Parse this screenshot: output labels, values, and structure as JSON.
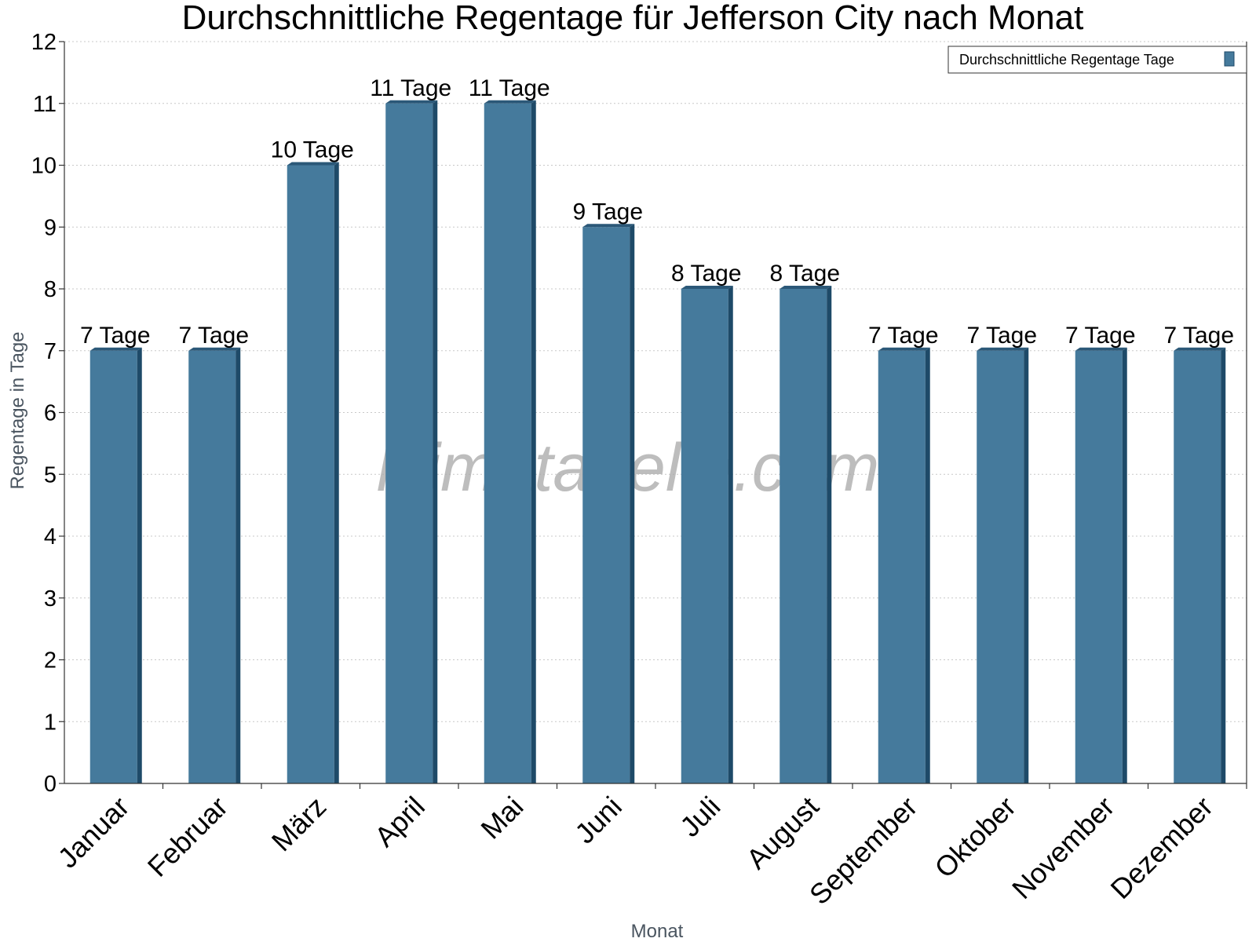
{
  "chart_data": {
    "type": "bar",
    "title": "Durchschnittliche Regentage für Jefferson City nach Monat",
    "xlabel": "Monat",
    "ylabel": "Regentage in Tage",
    "ylim": [
      0,
      12
    ],
    "yticks": [
      0,
      1,
      2,
      3,
      4,
      5,
      6,
      7,
      8,
      9,
      10,
      11,
      12
    ],
    "grid": true,
    "legend_position": "top-right",
    "categories": [
      "Januar",
      "Februar",
      "März",
      "April",
      "Mai",
      "Juni",
      "Juli",
      "August",
      "September",
      "Oktober",
      "November",
      "Dezember"
    ],
    "series": [
      {
        "name": "Durchschnittliche Regentage Tage",
        "values": [
          7,
          7,
          10,
          11,
          11,
          9,
          8,
          8,
          7,
          7,
          7,
          7
        ],
        "data_labels": [
          "7 Tage",
          "7 Tage",
          "10 Tage",
          "11 Tage",
          "11 Tage",
          "9 Tage",
          "8 Tage",
          "8 Tage",
          "7 Tage",
          "7 Tage",
          "7 Tage",
          "7 Tage"
        ],
        "color": "#457a9c",
        "side_color": "#1e4a68",
        "top_color": "#2b5878"
      }
    ]
  },
  "watermark": "klimatabelle.com"
}
